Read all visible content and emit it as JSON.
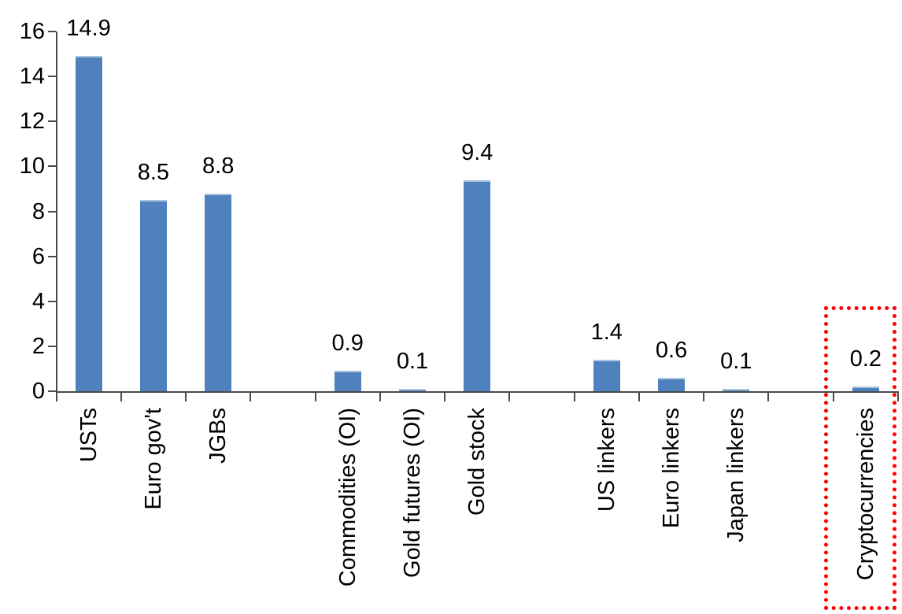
{
  "chart_data": {
    "type": "bar",
    "title": "",
    "xlabel": "",
    "ylabel": "",
    "categories": [
      "USTs",
      "Euro gov't",
      "JGBs",
      "",
      "Commodities (OI)",
      "Gold futures (OI)",
      "Gold stock",
      "",
      "US linkers",
      "Euro linkers",
      "Japan linkers",
      "",
      "Cryptocurrencies"
    ],
    "values": [
      14.9,
      8.5,
      8.8,
      null,
      0.9,
      0.1,
      9.4,
      null,
      1.4,
      0.6,
      0.1,
      null,
      0.2
    ],
    "labels": [
      "14.9",
      "8.5",
      "8.8",
      "",
      "0.9",
      "0.1",
      "9.4",
      "",
      "1.4",
      "0.6",
      "0.1",
      "",
      "0.2"
    ],
    "ylim": [
      0,
      16
    ],
    "yticks": [
      16,
      14,
      12,
      10,
      8,
      6,
      4,
      2,
      0
    ],
    "grid": false,
    "legend": false,
    "bar_color": "#4E81BD",
    "bar_top_highlight": "#A8C4E0",
    "axis_color": "#4A4A4A",
    "text_color": "#000000",
    "background": "#FFFFFF",
    "highlight_box": {
      "category": "Cryptocurrencies",
      "color": "#FF0000",
      "style": "dotted"
    }
  }
}
